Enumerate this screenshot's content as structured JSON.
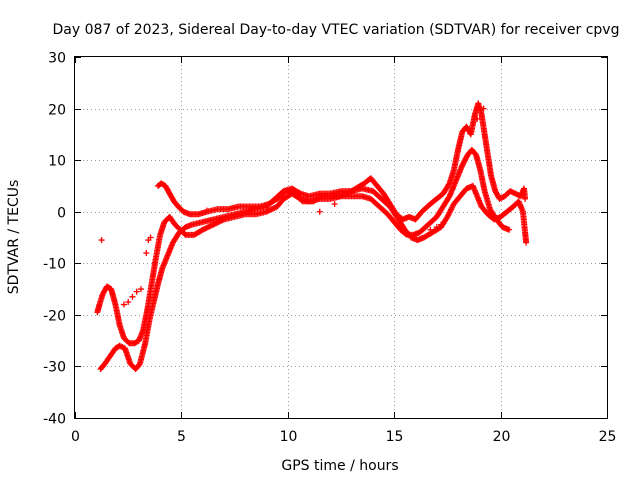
{
  "chart_data": {
    "type": "scatter",
    "title": "Day 087 of 2023, Sidereal Day-to-day VTEC variation (SDTVAR) for receiver cpvg",
    "xlabel": "GPS time / hours",
    "ylabel": "SDTVAR / TECUs",
    "xlim": [
      0,
      25
    ],
    "ylim": [
      -40,
      30
    ],
    "x_ticks": [
      0,
      5,
      10,
      15,
      20,
      25
    ],
    "y_ticks": [
      -40,
      -30,
      -20,
      -10,
      0,
      10,
      20,
      30
    ],
    "x_tick_labels": [
      "0",
      "5",
      "10",
      "15",
      "20",
      "25"
    ],
    "y_tick_labels": [
      "-40",
      "-30",
      "-20",
      "-10",
      "0",
      "10",
      "20",
      "30"
    ],
    "grid": true,
    "marker": "+",
    "color": "#ff0000",
    "series": [
      {
        "name": "track-1",
        "points": [
          [
            1.05,
            -19.5
          ],
          [
            1.15,
            -18
          ],
          [
            1.3,
            -16
          ],
          [
            1.5,
            -14.5
          ],
          [
            1.7,
            -15
          ],
          [
            1.9,
            -18
          ],
          [
            2.1,
            -22
          ],
          [
            2.3,
            -24.5
          ],
          [
            2.55,
            -25.5
          ],
          [
            2.8,
            -25.5
          ],
          [
            3.0,
            -25
          ],
          [
            3.2,
            -23
          ],
          [
            3.4,
            -19
          ],
          [
            3.6,
            -14
          ],
          [
            3.8,
            -9
          ],
          [
            4.0,
            -4.5
          ],
          [
            4.2,
            -2
          ],
          [
            4.45,
            -1
          ],
          [
            4.7,
            -2.5
          ],
          [
            4.95,
            -3.5
          ],
          [
            5.2,
            -4.5
          ],
          [
            5.6,
            -4.5
          ],
          [
            6.0,
            -3.5
          ],
          [
            6.5,
            -2.5
          ],
          [
            7.0,
            -1.5
          ],
          [
            7.5,
            -1
          ],
          [
            8.0,
            -0.5
          ],
          [
            8.5,
            -0.5
          ],
          [
            9.0,
            0
          ],
          [
            9.5,
            1
          ],
          [
            9.8,
            2.5
          ],
          [
            10.2,
            3.5
          ],
          [
            10.6,
            2.5
          ],
          [
            11.0,
            2
          ],
          [
            11.5,
            2.5
          ],
          [
            12.0,
            2.5
          ],
          [
            12.5,
            3
          ],
          [
            13.0,
            3
          ],
          [
            13.5,
            3
          ],
          [
            13.9,
            2.5
          ],
          [
            14.3,
            1
          ],
          [
            14.7,
            -0.5
          ],
          [
            15.0,
            -2
          ],
          [
            15.3,
            -3.5
          ],
          [
            15.6,
            -4.5
          ],
          [
            15.9,
            -4.5
          ],
          [
            16.2,
            -4
          ],
          [
            16.6,
            -2.5
          ],
          [
            17.0,
            -1
          ],
          [
            17.3,
            1
          ],
          [
            17.6,
            3
          ],
          [
            17.9,
            6
          ],
          [
            18.2,
            9
          ],
          [
            18.45,
            11
          ],
          [
            18.65,
            12
          ],
          [
            18.85,
            11
          ],
          [
            19.05,
            8
          ],
          [
            19.25,
            4
          ],
          [
            19.5,
            0.5
          ],
          [
            19.8,
            -1.5
          ],
          [
            20.1,
            -3
          ],
          [
            20.4,
            -3.5
          ]
        ]
      },
      {
        "name": "track-2",
        "points": [
          [
            1.2,
            -30.5
          ],
          [
            1.4,
            -29.5
          ],
          [
            1.65,
            -28
          ],
          [
            1.9,
            -26.5
          ],
          [
            2.1,
            -26
          ],
          [
            2.35,
            -26.5
          ],
          [
            2.6,
            -29.5
          ],
          [
            2.85,
            -30.5
          ],
          [
            3.05,
            -29.5
          ],
          [
            3.3,
            -25.5
          ],
          [
            3.5,
            -21
          ],
          [
            3.7,
            -17.5
          ],
          [
            3.9,
            -14
          ],
          [
            4.1,
            -11
          ],
          [
            4.35,
            -8.5
          ],
          [
            4.6,
            -6
          ],
          [
            4.9,
            -4
          ],
          [
            5.2,
            -3
          ],
          [
            5.5,
            -2.5
          ],
          [
            6.0,
            -2
          ],
          [
            6.5,
            -1.5
          ],
          [
            7.0,
            -1
          ],
          [
            7.5,
            -0.5
          ],
          [
            8.0,
            0
          ],
          [
            8.5,
            0.5
          ],
          [
            9.0,
            1
          ],
          [
            9.4,
            2.5
          ],
          [
            9.8,
            4
          ],
          [
            10.2,
            4.5
          ],
          [
            10.6,
            3.5
          ],
          [
            11.0,
            3
          ],
          [
            11.5,
            3.5
          ],
          [
            12.0,
            3.5
          ],
          [
            12.5,
            4
          ],
          [
            13.0,
            4
          ],
          [
            13.5,
            4.5
          ],
          [
            14.0,
            4
          ],
          [
            14.4,
            2.5
          ],
          [
            14.8,
            1
          ],
          [
            15.2,
            -1.5
          ],
          [
            15.5,
            -3.5
          ],
          [
            15.8,
            -5
          ],
          [
            16.1,
            -5.5
          ],
          [
            16.4,
            -5
          ],
          [
            16.8,
            -4
          ],
          [
            17.2,
            -3
          ],
          [
            17.5,
            -1
          ],
          [
            17.8,
            1.5
          ],
          [
            18.1,
            3
          ],
          [
            18.4,
            4.5
          ],
          [
            18.7,
            5
          ],
          [
            18.9,
            3
          ],
          [
            19.1,
            1
          ],
          [
            19.4,
            -0.5
          ],
          [
            19.7,
            -1.5
          ],
          [
            20.0,
            -1
          ],
          [
            20.3,
            0
          ],
          [
            20.6,
            1
          ],
          [
            20.85,
            2
          ],
          [
            21.05,
            0
          ],
          [
            21.15,
            -4
          ],
          [
            21.2,
            -6
          ]
        ]
      },
      {
        "name": "track-3",
        "points": [
          [
            3.9,
            5
          ],
          [
            4.05,
            5.5
          ],
          [
            4.25,
            5
          ],
          [
            4.45,
            3.5
          ],
          [
            4.65,
            2
          ],
          [
            4.85,
            1
          ],
          [
            5.1,
            0
          ],
          [
            5.4,
            -0.5
          ],
          [
            5.8,
            -0.5
          ],
          [
            6.2,
            0
          ],
          [
            6.7,
            0.5
          ],
          [
            7.2,
            0.5
          ],
          [
            7.7,
            1
          ],
          [
            8.2,
            1
          ],
          [
            8.7,
            1
          ],
          [
            9.1,
            1.5
          ],
          [
            9.5,
            2.5
          ],
          [
            9.9,
            4
          ],
          [
            10.3,
            3.5
          ],
          [
            10.7,
            2
          ],
          [
            11.2,
            2
          ],
          [
            11.6,
            3
          ],
          [
            12.0,
            3
          ],
          [
            12.4,
            3
          ],
          [
            12.8,
            3.5
          ],
          [
            13.2,
            4.5
          ],
          [
            13.6,
            5.5
          ],
          [
            13.9,
            6.5
          ],
          [
            14.2,
            5
          ],
          [
            14.5,
            3.5
          ],
          [
            14.8,
            1.5
          ],
          [
            15.1,
            -0.5
          ],
          [
            15.4,
            -1.5
          ],
          [
            15.7,
            -1
          ],
          [
            16.0,
            -1.5
          ],
          [
            16.3,
            0
          ],
          [
            16.7,
            1.5
          ],
          [
            17.0,
            2.5
          ],
          [
            17.3,
            3.5
          ],
          [
            17.6,
            5.5
          ],
          [
            17.8,
            8
          ],
          [
            18.0,
            12
          ],
          [
            18.2,
            15.5
          ],
          [
            18.4,
            16.5
          ],
          [
            18.6,
            15
          ],
          [
            18.8,
            19
          ],
          [
            18.95,
            21
          ],
          [
            19.1,
            19
          ],
          [
            19.25,
            15
          ],
          [
            19.4,
            11
          ],
          [
            19.55,
            7
          ],
          [
            19.75,
            4
          ],
          [
            19.95,
            2.5
          ],
          [
            20.2,
            3
          ],
          [
            20.45,
            4
          ],
          [
            20.7,
            3.5
          ],
          [
            20.95,
            3
          ],
          [
            21.1,
            4.5
          ],
          [
            21.15,
            2.5
          ]
        ]
      },
      {
        "name": "scattered",
        "points": [
          [
            1.25,
            -5.5
          ],
          [
            2.3,
            -18
          ],
          [
            2.5,
            -17.5
          ],
          [
            2.7,
            -16.5
          ],
          [
            2.9,
            -15.5
          ],
          [
            3.1,
            -15
          ],
          [
            3.35,
            -8
          ],
          [
            3.45,
            -5.5
          ],
          [
            3.55,
            -5
          ],
          [
            6.2,
            0.2
          ],
          [
            11.5,
            0
          ],
          [
            12.2,
            1.5
          ],
          [
            16.7,
            -3.5
          ],
          [
            17.0,
            -3
          ],
          [
            17.2,
            -2.5
          ],
          [
            18.9,
            18
          ],
          [
            19.2,
            20
          ]
        ]
      }
    ]
  }
}
